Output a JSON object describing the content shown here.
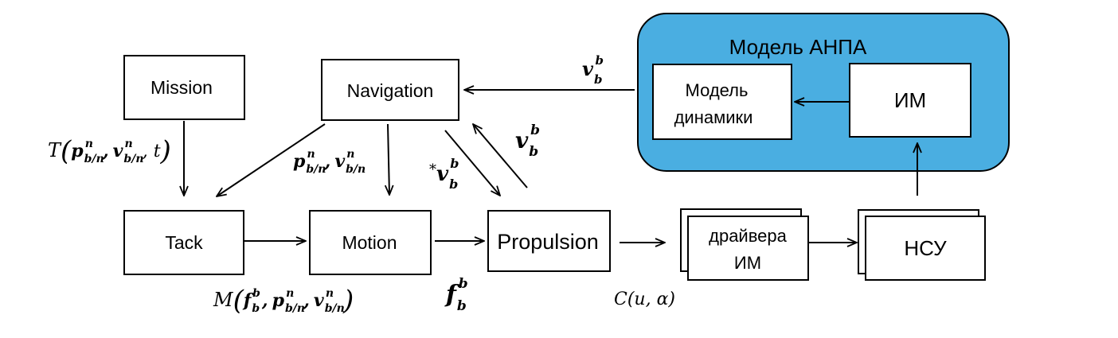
{
  "colors": {
    "model_group_fill": "#4aaee1",
    "stroke": "#000000",
    "box_fill": "#ffffff"
  },
  "blocks": {
    "mission": "Mission",
    "navigation": "Navigation",
    "tack": "Tack",
    "motion": "Motion",
    "propulsion": "Propulsion",
    "drivers_line1": "драйвера",
    "drivers_line2": "ИМ",
    "nsu": "НСУ",
    "model_group_title": "Модель АНПА",
    "dyn_model_line1": "Модель",
    "dyn_model_line2": "динамики",
    "im": "ИМ"
  },
  "labels": {
    "v": "v",
    "b": "b",
    "n": "n",
    "bn": "b/n",
    "p": "p",
    "f": "f",
    "T": "T",
    "M": "M",
    "t": "t",
    "star": "*",
    "c_expr": "C(u, α)"
  }
}
